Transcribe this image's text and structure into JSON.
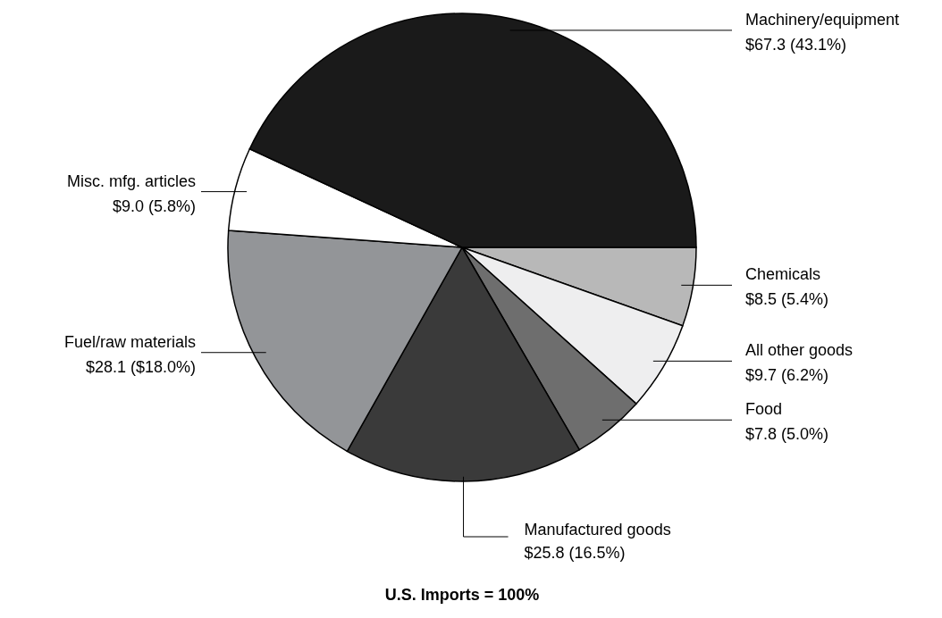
{
  "chart_data": {
    "type": "pie",
    "title": "U.S. Imports = 100%",
    "categories": [
      "Chemicals",
      "All other goods",
      "Food",
      "Manufactured goods",
      "Fuel/raw materials",
      "Misc. mfg. articles",
      "Machinery/equipment"
    ],
    "values": [
      8.5,
      9.7,
      7.8,
      25.8,
      28.1,
      9.0,
      67.3
    ],
    "value_labels": [
      "$8.5 (5.4%)",
      "$9.7 (6.2%)",
      "$7.8 (5.0%)",
      "$25.8 (16.5%)",
      "$28.1 ($18.0%)",
      "$9.0 (5.8%)",
      "$67.3 (43.1%)"
    ],
    "colors": [
      "#b8b8b8",
      "#eeeeef",
      "#6e6e6e",
      "#3a3a3a",
      "#939598",
      "#ffffff",
      "#1a1a1a"
    ]
  }
}
